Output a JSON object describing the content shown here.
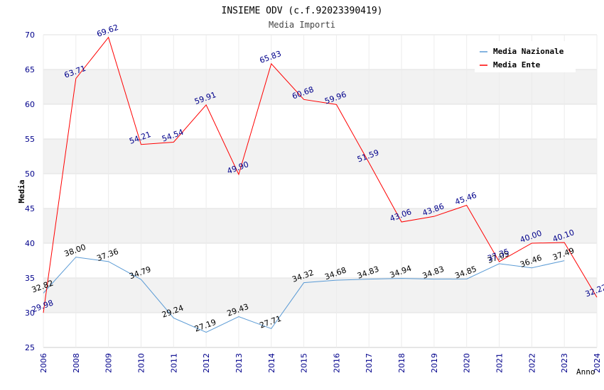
{
  "chart_data": {
    "type": "line",
    "title": "INSIEME ODV (c.f.92023390419)",
    "subtitle": "Media Importi",
    "xlabel": "Anno",
    "ylabel": "Media",
    "categories": [
      "2006",
      "2008",
      "2009",
      "2010",
      "2011",
      "2012",
      "2013",
      "2014",
      "2015",
      "2016",
      "2017",
      "2018",
      "2019",
      "2020",
      "2021",
      "2022",
      "2023",
      "2024"
    ],
    "ylim": [
      25,
      70
    ],
    "yticks": [
      "25",
      "30",
      "35",
      "40",
      "45",
      "50",
      "55",
      "60",
      "65",
      "70"
    ],
    "legend_position": "top-right",
    "series": [
      {
        "name": "Media Nazionale",
        "color": "#5b9bd5",
        "label_color": "#000000",
        "values": [
          32.82,
          38.0,
          37.36,
          34.79,
          29.24,
          27.19,
          29.43,
          27.71,
          34.32,
          34.68,
          34.83,
          34.94,
          34.83,
          34.85,
          37.05,
          36.46,
          37.49,
          null
        ],
        "labels": [
          "32.82",
          "38.00",
          "37.36",
          "34.79",
          "29.24",
          "27.19",
          "29.43",
          "27.71",
          "34.32",
          "34.68",
          "34.83",
          "34.94",
          "34.83",
          "34.85",
          "37.05",
          "36.46",
          "37.49",
          ""
        ]
      },
      {
        "name": "Media Ente",
        "color": "#ff0000",
        "label_color": "#00008b",
        "values": [
          29.98,
          63.71,
          69.62,
          54.21,
          54.54,
          59.91,
          49.9,
          65.83,
          60.68,
          59.96,
          51.59,
          43.06,
          43.86,
          45.46,
          37.35,
          40.0,
          40.1,
          32.22
        ],
        "labels": [
          "29.98",
          "63.71",
          "69.62",
          "54.21",
          "54.54",
          "59.91",
          "49.90",
          "65.83",
          "60.68",
          "59.96",
          "51.59",
          "43.06",
          "43.86",
          "45.46",
          "37.35",
          "40.00",
          "40.10",
          "32.22"
        ]
      }
    ]
  }
}
